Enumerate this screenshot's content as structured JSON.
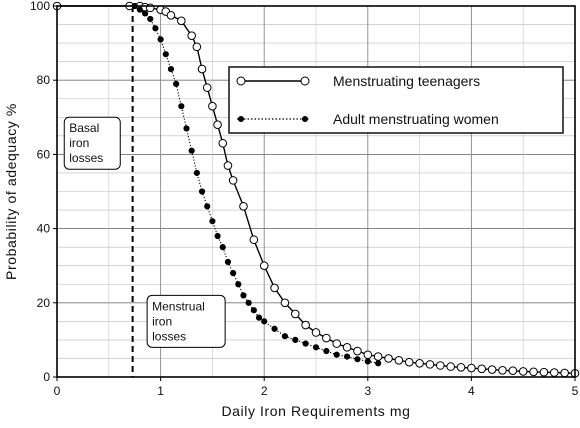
{
  "chart_data": {
    "type": "line",
    "title": "",
    "xlabel": "Daily Iron Requirements mg",
    "ylabel": "Probability of adequacy %",
    "xlim": [
      0,
      5
    ],
    "ylim": [
      0,
      100
    ],
    "xticks": [
      "0",
      "1",
      "2",
      "3",
      "4",
      "5"
    ],
    "yticks": [
      "0",
      "20",
      "40",
      "60",
      "80",
      "100"
    ],
    "grid": true,
    "legend": "top-right",
    "series": [
      {
        "name": "Menstruating teenagers",
        "marker": "open-circle",
        "line": "solid",
        "x": [
          0,
          0.7,
          0.8,
          0.85,
          0.9,
          1.0,
          1.05,
          1.1,
          1.2,
          1.3,
          1.35,
          1.4,
          1.45,
          1.5,
          1.55,
          1.6,
          1.65,
          1.7,
          1.8,
          1.9,
          2.0,
          2.1,
          2.2,
          2.3,
          2.4,
          2.5,
          2.6,
          2.7,
          2.8,
          2.9,
          3.0,
          3.1,
          3.2,
          3.3,
          3.4,
          3.5,
          3.6,
          3.7,
          3.8,
          3.9,
          4.0,
          4.1,
          4.2,
          4.3,
          4.4,
          4.5,
          4.6,
          4.7,
          4.8,
          4.9,
          5.0
        ],
        "y": [
          100,
          100,
          100,
          99.7,
          99.5,
          99,
          98.5,
          97.5,
          96,
          92,
          89,
          83,
          78,
          73,
          68,
          63,
          57,
          53,
          46,
          37,
          30,
          24,
          20,
          17,
          14,
          12,
          10.5,
          9,
          8,
          7,
          6,
          5.5,
          5,
          4.5,
          4,
          3.7,
          3.4,
          3.1,
          2.8,
          2.6,
          2.4,
          2.2,
          2.0,
          1.8,
          1.7,
          1.5,
          1.4,
          1.3,
          1.2,
          1.1,
          1.0
        ]
      },
      {
        "name": "Adult menstruating women",
        "marker": "filled-circle",
        "line": "dotted",
        "x": [
          0.75,
          0.8,
          0.85,
          0.9,
          0.95,
          1.0,
          1.05,
          1.1,
          1.15,
          1.2,
          1.25,
          1.3,
          1.35,
          1.4,
          1.45,
          1.5,
          1.55,
          1.6,
          1.65,
          1.7,
          1.75,
          1.8,
          1.85,
          1.9,
          1.95,
          2.0,
          2.1,
          2.2,
          2.3,
          2.4,
          2.5,
          2.6,
          2.7,
          2.8,
          2.9,
          3.0,
          3.1
        ],
        "y": [
          100,
          99,
          98,
          96.5,
          94,
          91,
          87,
          83,
          79,
          73,
          67,
          61,
          55,
          50,
          46,
          42,
          38,
          35,
          31,
          28,
          25,
          22,
          20,
          18,
          16,
          15,
          13,
          11,
          10,
          9,
          8,
          7,
          6,
          5.5,
          4.8,
          4.2,
          3.7
        ]
      }
    ],
    "annotations": [
      {
        "text": "Basal iron losses",
        "x": 0.07,
        "y": 56
      },
      {
        "text": "Menstrual iron losses",
        "x": 0.87,
        "y": 8
      }
    ],
    "reference_lines": [
      {
        "axis": "x",
        "value": 0.73,
        "style": "dashed"
      }
    ]
  }
}
